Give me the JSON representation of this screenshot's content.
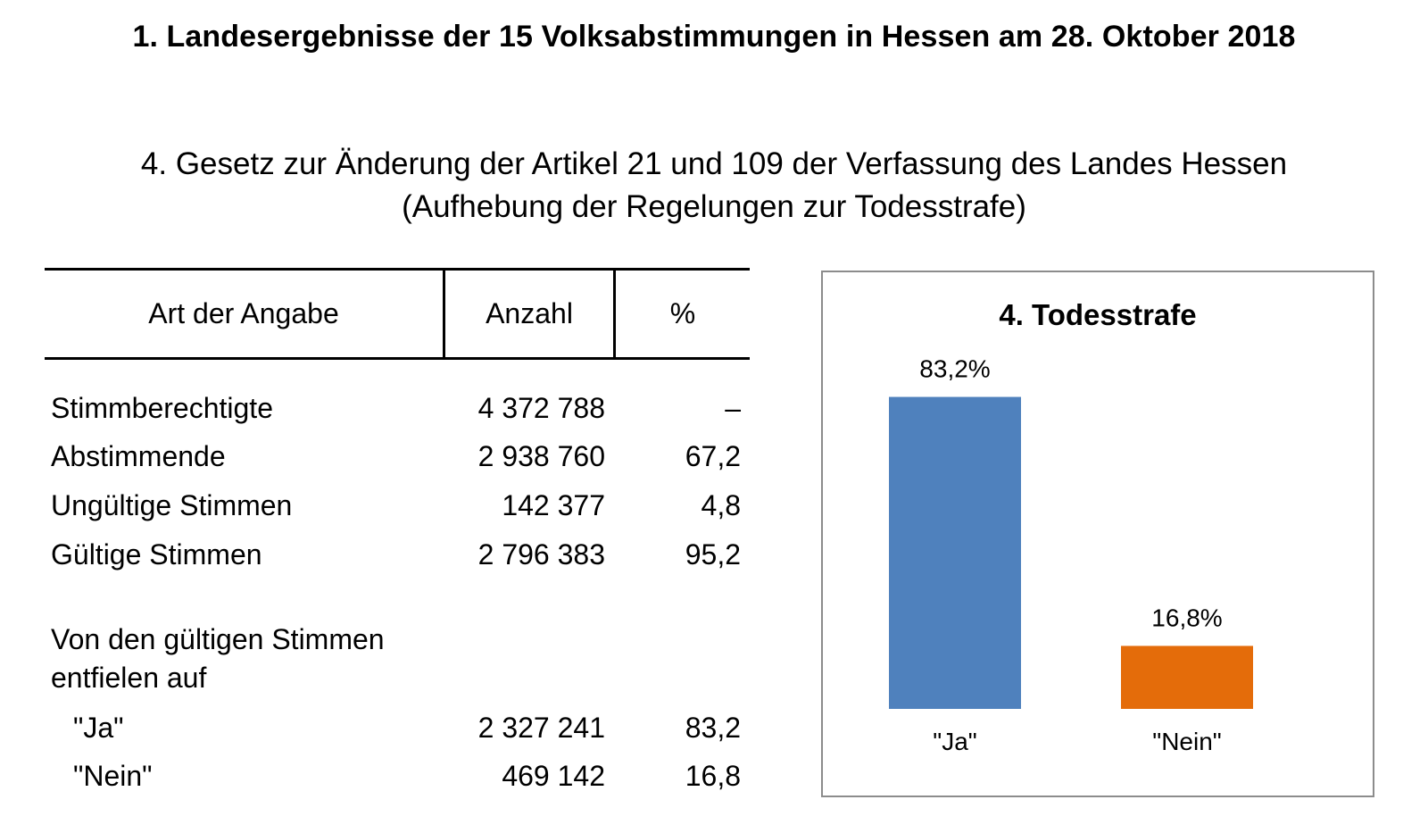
{
  "header": {
    "title": "1. Landesergebnisse der 15 Volksabstimmungen in Hessen am 28. Oktober 2018",
    "subtitle_line1": "4. Gesetz zur Änderung der Artikel 21 und 109 der Verfassung des Landes Hessen",
    "subtitle_line2": "(Aufhebung der Regelungen zur Todesstrafe)"
  },
  "table": {
    "columns": [
      "Art der Angabe",
      "Anzahl",
      "%"
    ],
    "rows": [
      {
        "label": "Stimmberechtigte",
        "count": "4 372 788",
        "pct": "–"
      },
      {
        "label": "Abstimmende",
        "count": "2 938 760",
        "pct": "67,2"
      },
      {
        "label": "Ungültige Stimmen",
        "count": "142 377",
        "pct": "4,8"
      },
      {
        "label": "Gültige Stimmen",
        "count": "2 796 383",
        "pct": "95,2"
      }
    ],
    "note_line1": "Von den gültigen Stimmen",
    "note_line2": "entfielen auf",
    "sub_rows": [
      {
        "label": "\"Ja\"",
        "count": "2 327 241",
        "pct": "83,2"
      },
      {
        "label": "\"Nein\"",
        "count": "469 142",
        "pct": "16,8"
      }
    ]
  },
  "chart_data": {
    "type": "bar",
    "title": "4. Todesstrafe",
    "categories": [
      "\"Ja\"",
      "\"Nein\""
    ],
    "values": [
      83.2,
      16.8
    ],
    "value_labels": [
      "83,2%",
      "16,8%"
    ],
    "colors": [
      "#4f81bd",
      "#e46c0a"
    ],
    "ylim": [
      0,
      100
    ],
    "grid": false,
    "legend": "none"
  }
}
